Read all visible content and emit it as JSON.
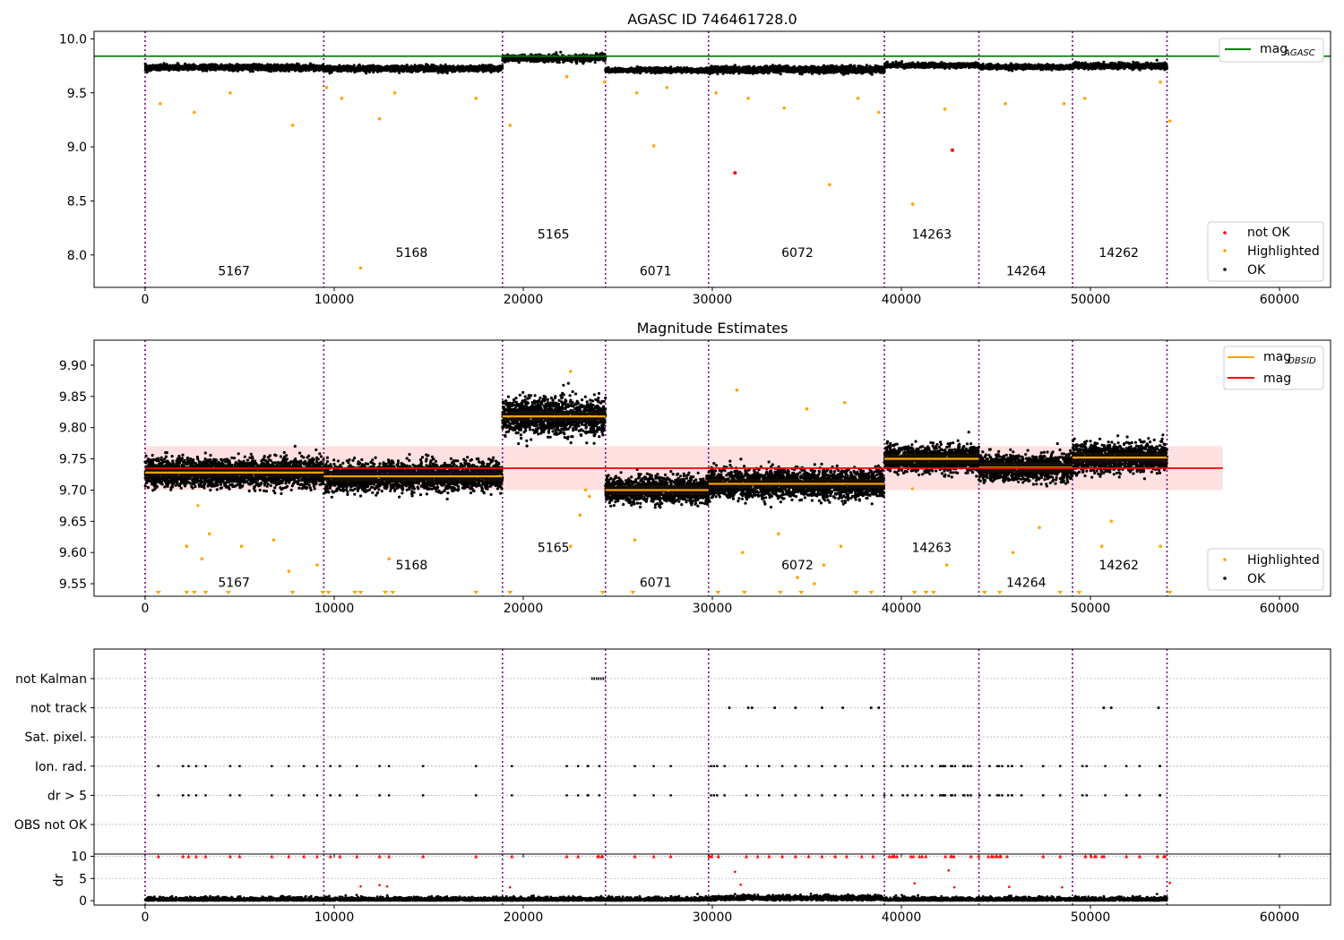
{
  "figure": {
    "background": "#ffffff"
  },
  "chart_data": [
    {
      "type": "scatter",
      "title": "AGASC ID 746461728.0",
      "xlim": [
        -2700,
        62700
      ],
      "ylim": [
        7.7,
        10.07
      ],
      "xticks": [
        0,
        10000,
        20000,
        30000,
        40000,
        50000,
        60000
      ],
      "yticks": [
        8.0,
        8.5,
        9.0,
        9.5,
        10.0
      ],
      "ytick_labels": [
        "8.0",
        "8.5",
        "9.0",
        "9.5",
        "10.0"
      ],
      "obs_boundaries": [
        0,
        9450,
        18900,
        24350,
        29800,
        39100,
        44100,
        49050,
        54050
      ],
      "obs_labels": [
        {
          "text": "5167",
          "x": 4700,
          "y": 7.81
        },
        {
          "text": "5168",
          "x": 14100,
          "y": 7.98
        },
        {
          "text": "5165",
          "x": 21600,
          "y": 8.15
        },
        {
          "text": "6071",
          "x": 27000,
          "y": 7.81
        },
        {
          "text": "6072",
          "x": 34500,
          "y": 7.98
        },
        {
          "text": "14263",
          "x": 41600,
          "y": 8.15
        },
        {
          "text": "14264",
          "x": 46600,
          "y": 7.81
        },
        {
          "text": "14262",
          "x": 51500,
          "y": 7.98
        }
      ],
      "segments": [
        {
          "x0": 0,
          "x1": 9450,
          "mean": 9.735,
          "spread": 0.025
        },
        {
          "x0": 9450,
          "x1": 18900,
          "mean": 9.725,
          "spread": 0.025
        },
        {
          "x0": 18900,
          "x1": 23700,
          "mean": 9.82,
          "spread": 0.03
        },
        {
          "x0": 23700,
          "x1": 24350,
          "mean": 9.83,
          "spread": 0.03
        },
        {
          "x0": 24350,
          "x1": 29800,
          "mean": 9.71,
          "spread": 0.02
        },
        {
          "x0": 29800,
          "x1": 39100,
          "mean": 9.715,
          "spread": 0.03
        },
        {
          "x0": 39100,
          "x1": 44100,
          "mean": 9.755,
          "spread": 0.02
        },
        {
          "x0": 44100,
          "x1": 49050,
          "mean": 9.74,
          "spread": 0.02
        },
        {
          "x0": 49050,
          "x1": 54050,
          "mean": 9.75,
          "spread": 0.025
        }
      ],
      "hlines": [
        {
          "name": "mag_AGASC",
          "y": 9.84,
          "x0": -2700,
          "x1": 62700,
          "color": "#008000"
        }
      ],
      "highlighted_outliers": [
        [
          800,
          9.4
        ],
        [
          2600,
          9.32
        ],
        [
          4500,
          9.5
        ],
        [
          7800,
          9.2
        ],
        [
          9600,
          9.55
        ],
        [
          10400,
          9.45
        ],
        [
          11400,
          7.88
        ],
        [
          12400,
          9.26
        ],
        [
          13200,
          9.5
        ],
        [
          17500,
          9.45
        ],
        [
          19300,
          9.2
        ],
        [
          22300,
          9.65
        ],
        [
          24300,
          9.6
        ],
        [
          26000,
          9.5
        ],
        [
          26900,
          9.01
        ],
        [
          27600,
          9.55
        ],
        [
          30200,
          9.5
        ],
        [
          31900,
          9.45
        ],
        [
          33800,
          9.36
        ],
        [
          36200,
          8.65
        ],
        [
          37700,
          9.45
        ],
        [
          38800,
          9.32
        ],
        [
          40600,
          8.47
        ],
        [
          42300,
          9.35
        ],
        [
          45500,
          9.4
        ],
        [
          48600,
          9.4
        ],
        [
          49700,
          9.45
        ],
        [
          53700,
          9.6
        ],
        [
          54200,
          9.24
        ]
      ],
      "not_ok_points": [
        [
          31200,
          8.76
        ],
        [
          42700,
          8.97
        ]
      ],
      "legend_line": [
        {
          "label_main": "mag",
          "label_sub": "AGASC",
          "color": "#008000"
        }
      ],
      "legend_points": [
        {
          "label": "not OK",
          "color": "#ff0000"
        },
        {
          "label": "Highlighted",
          "color": "#ffa500"
        },
        {
          "label": "OK",
          "color": "#000000"
        }
      ]
    },
    {
      "type": "scatter",
      "title": "Magnitude Estimates",
      "xlim": [
        -2700,
        62700
      ],
      "ylim": [
        9.53,
        9.94
      ],
      "xticks": [
        0,
        10000,
        20000,
        30000,
        40000,
        50000,
        60000
      ],
      "yticks": [
        9.55,
        9.6,
        9.65,
        9.7,
        9.75,
        9.8,
        9.85,
        9.9
      ],
      "ytick_labels": [
        "9.55",
        "9.60",
        "9.65",
        "9.70",
        "9.75",
        "9.80",
        "9.85",
        "9.90"
      ],
      "obs_boundaries": [
        0,
        9450,
        18900,
        24350,
        29800,
        39100,
        44100,
        49050,
        54050
      ],
      "obs_labels": [
        {
          "text": "5167",
          "x": 4700,
          "y": 9.545
        },
        {
          "text": "5168",
          "x": 14100,
          "y": 9.573
        },
        {
          "text": "5165",
          "x": 21600,
          "y": 9.601
        },
        {
          "text": "6071",
          "x": 27000,
          "y": 9.545
        },
        {
          "text": "6072",
          "x": 34500,
          "y": 9.573
        },
        {
          "text": "14263",
          "x": 41600,
          "y": 9.601
        },
        {
          "text": "14264",
          "x": 46600,
          "y": 9.545
        },
        {
          "text": "14262",
          "x": 51500,
          "y": 9.573
        }
      ],
      "segments": [
        {
          "x0": 0,
          "x1": 9450,
          "mean": 9.728,
          "spread": 0.022
        },
        {
          "x0": 9450,
          "x1": 18900,
          "mean": 9.722,
          "spread": 0.022
        },
        {
          "x0": 18900,
          "x1": 24350,
          "mean": 9.818,
          "spread": 0.028
        },
        {
          "x0": 24350,
          "x1": 29800,
          "mean": 9.7,
          "spread": 0.02
        },
        {
          "x0": 29800,
          "x1": 39100,
          "mean": 9.71,
          "spread": 0.022
        },
        {
          "x0": 39100,
          "x1": 44100,
          "mean": 9.75,
          "spread": 0.02
        },
        {
          "x0": 44100,
          "x1": 49050,
          "mean": 9.736,
          "spread": 0.02
        },
        {
          "x0": 49050,
          "x1": 54050,
          "mean": 9.752,
          "spread": 0.022
        }
      ],
      "mag": 9.735,
      "mag_band": [
        9.7,
        9.77
      ],
      "mag_band_x": [
        0,
        57000
      ],
      "mag_color": "#ff0000",
      "mag_obsid_color": "#ffa500",
      "highlighted_outliers": [
        [
          2200,
          9.61
        ],
        [
          3000,
          9.59
        ],
        [
          3400,
          9.63
        ],
        [
          5100,
          9.61
        ],
        [
          6800,
          9.62
        ],
        [
          7600,
          9.57
        ],
        [
          9100,
          9.58
        ],
        [
          12900,
          9.59
        ],
        [
          22500,
          9.61
        ],
        [
          23000,
          9.66
        ],
        [
          23300,
          9.7
        ],
        [
          23500,
          9.69
        ],
        [
          25900,
          9.62
        ],
        [
          31600,
          9.6
        ],
        [
          33500,
          9.63
        ],
        [
          34500,
          9.56
        ],
        [
          35400,
          9.55
        ],
        [
          35900,
          9.58
        ],
        [
          36800,
          9.61
        ],
        [
          42400,
          9.58
        ],
        [
          45900,
          9.6
        ],
        [
          47300,
          9.64
        ],
        [
          50600,
          9.61
        ],
        [
          51100,
          9.65
        ],
        [
          53700,
          9.61
        ],
        [
          31300,
          9.86
        ],
        [
          35000,
          9.83
        ],
        [
          37000,
          9.84
        ],
        [
          22500,
          9.89
        ]
      ],
      "lower_limit_markers": [
        700,
        2200,
        2600,
        3200,
        4400,
        7800,
        9400,
        9700,
        11100,
        11400,
        12700,
        13100,
        17500,
        19300,
        24200,
        25800,
        30300,
        31700,
        33600,
        34700,
        37600,
        38400,
        40700,
        41300,
        41700,
        44400,
        45200,
        48400,
        49400,
        54200
      ],
      "legend_line": [
        {
          "label_main": "mag",
          "label_sub": "OBSID",
          "color": "#ffa500"
        },
        {
          "label_main": "mag",
          "label_sub": "",
          "color": "#ff0000"
        }
      ],
      "legend_points": [
        {
          "label": "Highlighted",
          "color": "#ffa500"
        },
        {
          "label": "OK",
          "color": "#000000"
        }
      ]
    },
    {
      "type": "scatter",
      "title": "",
      "xlim": [
        -2700,
        62700
      ],
      "xticks": [
        0,
        10000,
        20000,
        30000,
        40000,
        50000,
        60000
      ],
      "flag_rows": [
        "not Kalman",
        "not track",
        "Sat. pixel.",
        "Ion. rad.",
        "dr > 5",
        "OBS not OK"
      ],
      "obs_boundaries": [
        0,
        9450,
        18900,
        24350,
        29800,
        39100,
        44100,
        49050,
        54050
      ],
      "flag_segments": [
        {
          "row": "not Kalman",
          "x0": 23600,
          "x1": 24350
        }
      ],
      "flag_points": {
        "not track": [
          30900,
          31900,
          32100,
          33300,
          34400,
          35800,
          36900,
          38400,
          38800,
          50700,
          51100,
          53600
        ],
        "ion_dr_dense_ranges": [
          [
            29800,
            31100
          ],
          [
            39100,
            44100
          ],
          [
            44100,
            46500
          ],
          [
            49050,
            50800
          ],
          [
            53400,
            54050
          ],
          [
            23400,
            24350
          ]
        ],
        "ion_dr_sparse": [
          700,
          2000,
          2300,
          2700,
          3200,
          4500,
          5000,
          6700,
          7600,
          8400,
          9100,
          9800,
          10300,
          11200,
          12400,
          12900,
          14700,
          17500,
          19400,
          22300,
          22900,
          25900,
          26900,
          27800,
          31800,
          32400,
          33000,
          33700,
          34400,
          35100,
          35800,
          36500,
          37100,
          37900,
          38500,
          47500,
          48400,
          51900,
          52600
        ]
      }
    },
    {
      "type": "scatter",
      "title": "",
      "ylabel": "dr",
      "xlim": [
        -2700,
        62700
      ],
      "ylim": [
        -1,
        10.5
      ],
      "xticks": [
        0,
        10000,
        20000,
        30000,
        40000,
        50000,
        60000
      ],
      "xtick_labels": [
        "0",
        "10000",
        "20000",
        "30000",
        "40000",
        "50000",
        "60000"
      ],
      "yticks": [
        0,
        5,
        10
      ],
      "ytick_labels": [
        "0",
        "5",
        "10"
      ],
      "obs_boundaries": [
        0,
        9450,
        18900,
        24350,
        29800,
        39100,
        44100,
        49050,
        54050
      ],
      "clip_value": 10,
      "moderate_points": [
        [
          11400,
          3.2
        ],
        [
          12400,
          3.5
        ],
        [
          12800,
          3.2
        ],
        [
          19300,
          3.0
        ],
        [
          31200,
          6.5
        ],
        [
          31500,
          3.6
        ],
        [
          40700,
          3.9
        ],
        [
          42500,
          6.8
        ],
        [
          42800,
          3.0
        ],
        [
          45700,
          3.1
        ],
        [
          48500,
          3.0
        ],
        [
          54200,
          4.0
        ]
      ],
      "colors": {
        "ok": "#000000",
        "high": "#ff0000"
      }
    }
  ]
}
